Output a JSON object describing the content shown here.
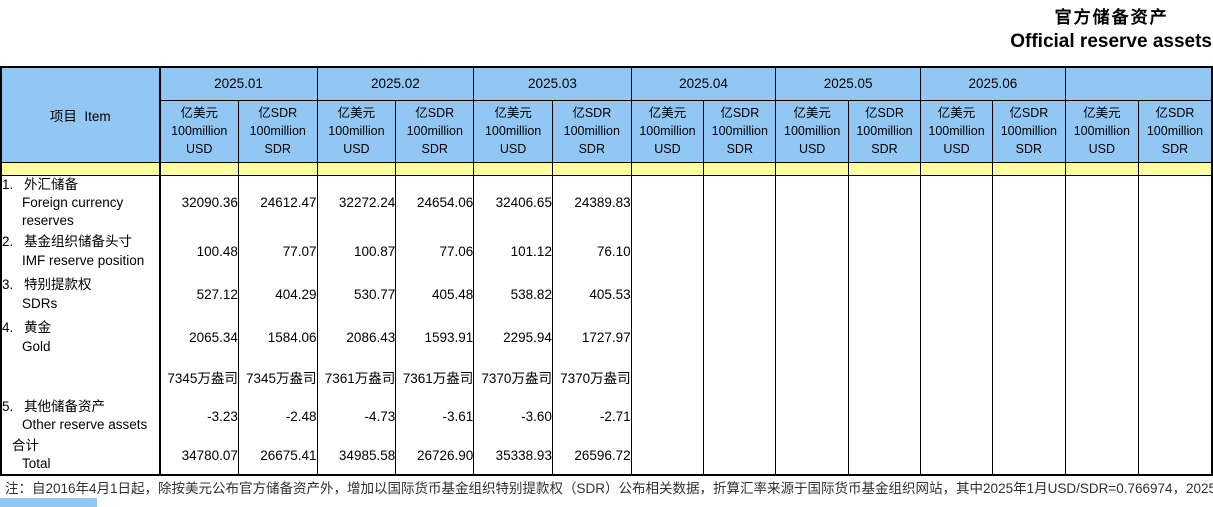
{
  "colors": {
    "header_blue": "#92C7F3",
    "stripe_yellow": "#FFFF9E"
  },
  "title": {
    "zh": "官方储备资产",
    "en": "Official reserve assets"
  },
  "table": {
    "item_header": "项目  Item",
    "months": [
      "2025.01",
      "2025.02",
      "2025.03",
      "2025.04",
      "2025.05",
      "2025.06",
      ""
    ],
    "unit_usd": [
      "亿美元",
      "100million",
      "USD"
    ],
    "unit_sdr": [
      "亿SDR",
      "100million",
      "SDR"
    ],
    "rows": [
      {
        "no": "1.",
        "zh": "外汇储备",
        "en": "Foreign currency reserves",
        "values": [
          "32090.36",
          "24612.47",
          "32272.24",
          "24654.06",
          "32406.65",
          "24389.83",
          "",
          "",
          "",
          "",
          "",
          "",
          "",
          ""
        ]
      },
      {
        "no": "2.",
        "zh": "基金组织储备头寸",
        "en": "IMF reserve position",
        "values": [
          "100.48",
          "77.07",
          "100.87",
          "77.06",
          "101.12",
          "76.10",
          "",
          "",
          "",
          "",
          "",
          "",
          "",
          ""
        ]
      },
      {
        "no": "3.",
        "zh": "特别提款权",
        "en": "SDRs",
        "values": [
          "527.12",
          "404.29",
          "530.77",
          "405.48",
          "538.82",
          "405.53",
          "",
          "",
          "",
          "",
          "",
          "",
          "",
          ""
        ]
      },
      {
        "no": "4.",
        "zh": "黄金",
        "en": "Gold",
        "values": [
          "2065.34",
          "1584.06",
          "2086.43",
          "1593.91",
          "2295.94",
          "1727.97",
          "",
          "",
          "",
          "",
          "",
          "",
          "",
          ""
        ]
      },
      {
        "no": "",
        "zh": "",
        "en": "",
        "values": [
          "7345万盎司",
          "7345万盎司",
          "7361万盎司",
          "7361万盎司",
          "7370万盎司",
          "7370万盎司",
          "",
          "",
          "",
          "",
          "",
          "",
          "",
          ""
        ]
      },
      {
        "no": "5.",
        "zh": "其他储备资产",
        "en": "Other reserve assets",
        "values": [
          "-3.23",
          "-2.48",
          "-4.73",
          "-3.61",
          "-3.60",
          "-2.71",
          "",
          "",
          "",
          "",
          "",
          "",
          "",
          ""
        ]
      },
      {
        "no": "",
        "zh": "合计",
        "en": "Total",
        "values": [
          "34780.07",
          "26675.41",
          "34985.58",
          "26726.90",
          "35338.93",
          "26596.72",
          "",
          "",
          "",
          "",
          "",
          "",
          "",
          ""
        ]
      }
    ]
  },
  "note": "注：自2016年4月1日起，除按美元公布官方储备资产外，增加以国际货币基金组织特别提款权（SDR）公布相关数据，折算汇率来源于国际货币基金组织网站，其中2025年1月USD/SDR=0.766974，2025"
}
